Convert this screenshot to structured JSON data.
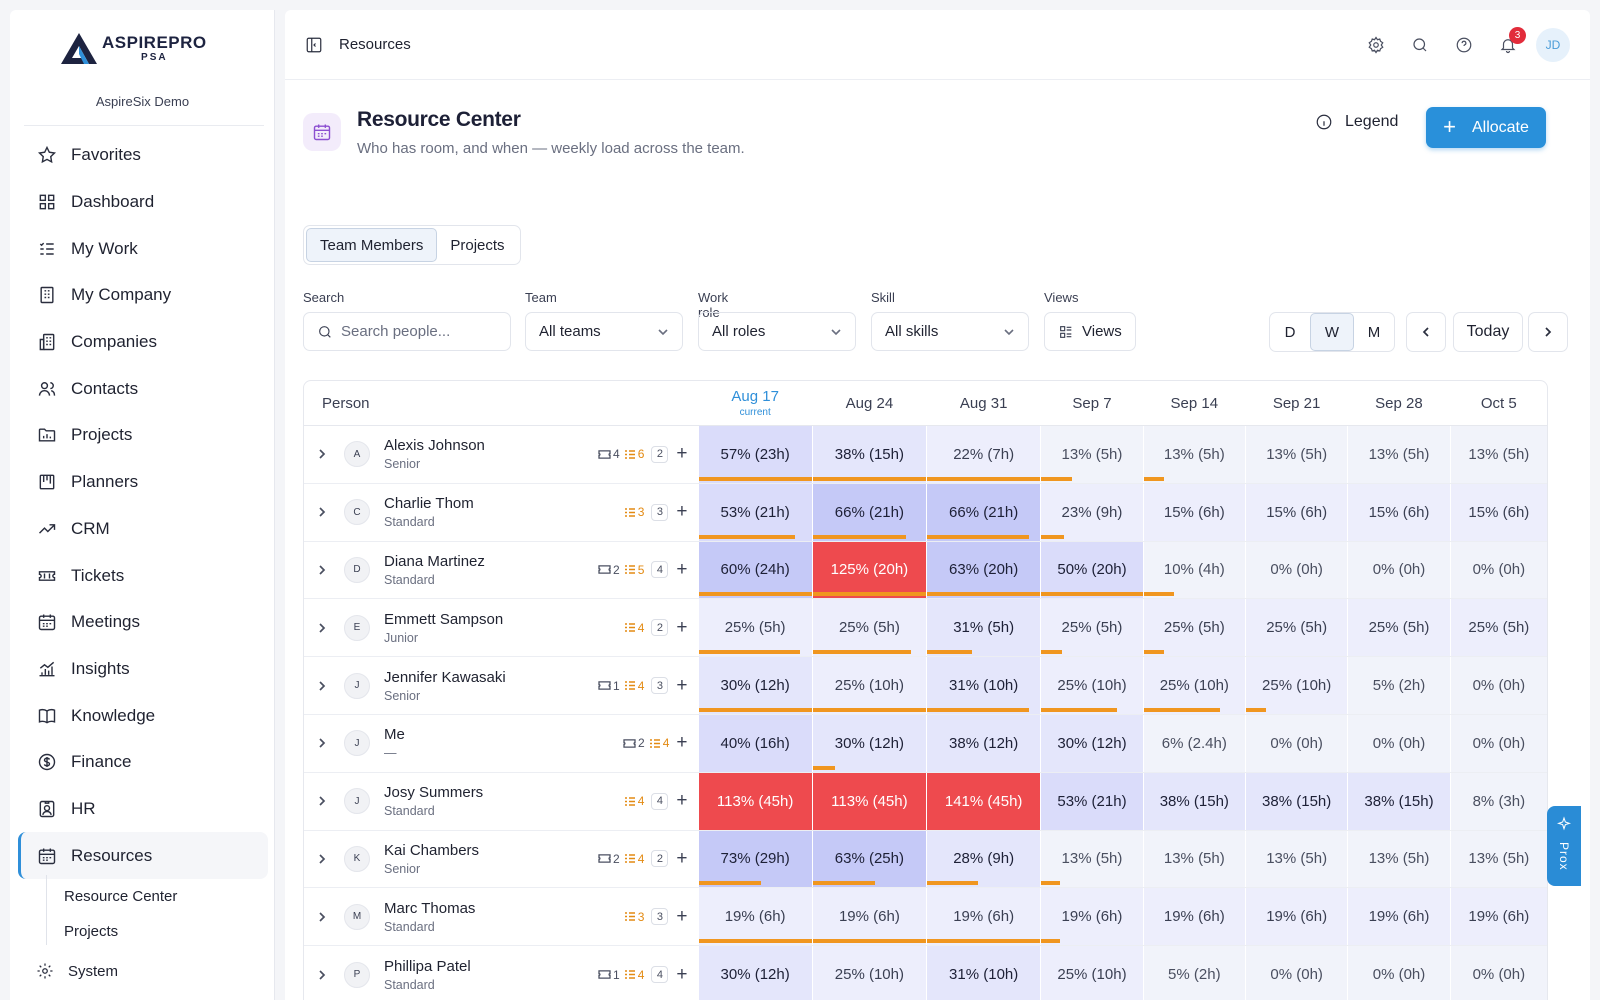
{
  "brand": {
    "name": "ASPIREPRO",
    "sub": "PSA",
    "org": "AspireSix Demo"
  },
  "nav": [
    {
      "label": "Favorites",
      "icon": "star-icon"
    },
    {
      "label": "Dashboard",
      "icon": "grid-icon"
    },
    {
      "label": "My Work",
      "icon": "list-icon"
    },
    {
      "label": "My Company",
      "icon": "building-icon"
    },
    {
      "label": "Companies",
      "icon": "buildings-icon"
    },
    {
      "label": "Contacts",
      "icon": "users-icon"
    },
    {
      "label": "Projects",
      "icon": "folder-icon"
    },
    {
      "label": "Planners",
      "icon": "planner-icon"
    },
    {
      "label": "CRM",
      "icon": "trend-icon"
    },
    {
      "label": "Tickets",
      "icon": "ticket-icon"
    },
    {
      "label": "Meetings",
      "icon": "calendar-icon"
    },
    {
      "label": "Insights",
      "icon": "chart-icon"
    },
    {
      "label": "Knowledge",
      "icon": "book-icon"
    },
    {
      "label": "Finance",
      "icon": "dollar-icon"
    },
    {
      "label": "HR",
      "icon": "id-badge-icon"
    },
    {
      "label": "Resources",
      "icon": "calendar-icon",
      "active": true
    }
  ],
  "subnav": [
    "Resource Center",
    "Projects"
  ],
  "system_label": "System",
  "topbar": {
    "crumb": "Resources",
    "notifications": "3",
    "avatar": "JD"
  },
  "header": {
    "title": "Resource Center",
    "subtitle": "Who has room, and when — weekly load across the team.",
    "legend": "Legend",
    "allocate": "Allocate"
  },
  "tabs": [
    "Team Members",
    "Projects"
  ],
  "filters": {
    "search_label": "Search",
    "search_placeholder": "Search people...",
    "team_label": "Team",
    "team_value": "All teams",
    "role_label": "Work role",
    "role_value": "All roles",
    "skill_label": "Skill",
    "skill_value": "All skills",
    "views_label": "Views",
    "views_value": "Views",
    "scale": [
      "D",
      "W",
      "M"
    ],
    "today": "Today"
  },
  "grid": {
    "person_header": "Person",
    "current_label": "current",
    "weeks": [
      "Aug 17",
      "Aug 24",
      "Aug 31",
      "Sep 7",
      "Sep 14",
      "Sep 21",
      "Sep 28",
      "Oct 5"
    ],
    "rows": [
      {
        "initial": "A",
        "name": "Alexis Johnson",
        "role": "Senior",
        "tickets": "4",
        "tasks": "6",
        "count": "2",
        "cells": [
          "57% (23h)",
          "38% (15h)",
          "22% (7h)",
          "13% (5h)",
          "13% (5h)",
          "13% (5h)",
          "13% (5h)",
          "13% (5h)"
        ],
        "bars": [
          1,
          1,
          1,
          0.3,
          0.2,
          0,
          0,
          0
        ]
      },
      {
        "initial": "C",
        "name": "Charlie Thom",
        "role": "Standard",
        "tickets": "",
        "tasks": "3",
        "count": "3",
        "cells": [
          "53% (21h)",
          "66% (21h)",
          "66% (21h)",
          "23% (9h)",
          "15% (6h)",
          "15% (6h)",
          "15% (6h)",
          "15% (6h)"
        ],
        "bars": [
          0.85,
          0.82,
          0.9,
          0.22,
          0,
          0,
          0,
          0
        ]
      },
      {
        "initial": "D",
        "name": "Diana Martinez",
        "role": "Standard",
        "tickets": "2",
        "tasks": "5",
        "count": "4",
        "cells": [
          "60% (24h)",
          "125% (20h)",
          "63% (20h)",
          "50% (20h)",
          "10% (4h)",
          "0% (0h)",
          "0% (0h)",
          "0% (0h)"
        ],
        "bars": [
          1,
          1,
          1,
          1,
          0.3,
          0,
          0,
          0
        ]
      },
      {
        "initial": "E",
        "name": "Emmett Sampson",
        "role": "Junior",
        "tickets": "",
        "tasks": "4",
        "count": "2",
        "cells": [
          "25% (5h)",
          "25% (5h)",
          "31% (5h)",
          "25% (5h)",
          "25% (5h)",
          "25% (5h)",
          "25% (5h)",
          "25% (5h)"
        ],
        "bars": [
          0.9,
          0.87,
          0.4,
          0.2,
          0.2,
          0,
          0,
          0
        ]
      },
      {
        "initial": "J",
        "name": "Jennifer Kawasaki",
        "role": "Senior",
        "tickets": "1",
        "tasks": "4",
        "count": "3",
        "cells": [
          "30% (12h)",
          "25% (10h)",
          "31% (10h)",
          "25% (10h)",
          "25% (10h)",
          "25% (10h)",
          "5% (2h)",
          "0% (0h)"
        ],
        "bars": [
          1,
          1,
          0.9,
          0.75,
          0.75,
          0.2,
          0,
          0
        ]
      },
      {
        "initial": "J",
        "name": "Me",
        "role": "—",
        "tickets": "2",
        "tasks": "4",
        "count": "",
        "cells": [
          "40% (16h)",
          "30% (12h)",
          "38% (12h)",
          "30% (12h)",
          "6% (2.4h)",
          "0% (0h)",
          "0% (0h)",
          "0% (0h)"
        ],
        "bars": [
          0,
          0.2,
          0,
          0,
          0,
          0,
          0,
          0
        ]
      },
      {
        "initial": "J",
        "name": "Josy Summers",
        "role": "Standard",
        "tickets": "",
        "tasks": "4",
        "count": "4",
        "cells": [
          "113% (45h)",
          "113% (45h)",
          "141% (45h)",
          "53% (21h)",
          "38% (15h)",
          "38% (15h)",
          "38% (15h)",
          "8% (3h)"
        ],
        "bars": [
          0,
          0,
          0,
          0,
          0,
          0,
          0,
          0
        ]
      },
      {
        "initial": "K",
        "name": "Kai Chambers",
        "role": "Senior",
        "tickets": "2",
        "tasks": "4",
        "count": "2",
        "cells": [
          "73% (29h)",
          "63% (25h)",
          "28% (9h)",
          "13% (5h)",
          "13% (5h)",
          "13% (5h)",
          "13% (5h)",
          "13% (5h)"
        ],
        "bars": [
          0.55,
          0.55,
          0.45,
          0.18,
          0,
          0,
          0,
          0
        ]
      },
      {
        "initial": "M",
        "name": "Marc Thomas",
        "role": "Standard",
        "tickets": "",
        "tasks": "3",
        "count": "3",
        "cells": [
          "19% (6h)",
          "19% (6h)",
          "19% (6h)",
          "19% (6h)",
          "19% (6h)",
          "19% (6h)",
          "19% (6h)",
          "19% (6h)"
        ],
        "bars": [
          1,
          1,
          1,
          0.18,
          0,
          0,
          0,
          0
        ]
      },
      {
        "initial": "P",
        "name": "Phillipa Patel",
        "role": "Standard",
        "tickets": "1",
        "tasks": "4",
        "count": "4",
        "cells": [
          "30% (12h)",
          "25% (10h)",
          "31% (10h)",
          "25% (10h)",
          "5% (2h)",
          "0% (0h)",
          "0% (0h)",
          "0% (0h)"
        ],
        "bars": [
          0,
          0,
          0,
          0,
          0,
          0,
          0,
          0
        ]
      }
    ]
  },
  "prox_label": "Prox",
  "colors": {
    "accent": "#2990da",
    "over": "#ee4a4e",
    "bar": "#f0961f"
  }
}
